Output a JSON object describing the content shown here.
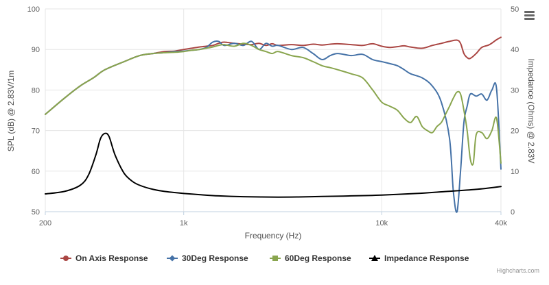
{
  "chart_data": {
    "type": "line",
    "title": "",
    "xlabel": "Frequency (Hz)",
    "ylabel_left": "SPL (dB) @ 2.83V/1m",
    "ylabel_right": "Impedance (Ohms) @ 2.83V",
    "x_scale": "log",
    "xlim": [
      200,
      40000
    ],
    "x_ticks": [
      200,
      1000,
      10000,
      40000
    ],
    "x_tick_labels": [
      "200",
      "1k",
      "10k",
      "40k"
    ],
    "ylim_left": [
      50,
      100
    ],
    "y_ticks_left": [
      50,
      60,
      70,
      80,
      90,
      100
    ],
    "y_tick_labels_left": [
      "50",
      "60",
      "70",
      "80",
      "90",
      "100"
    ],
    "ylim_right": [
      0,
      50
    ],
    "y_ticks_right": [
      0,
      10,
      20,
      30,
      40,
      50
    ],
    "y_tick_labels_right": [
      "0",
      "10",
      "20",
      "30",
      "40",
      "50"
    ],
    "grid": true,
    "legend_position": "bottom",
    "series": [
      {
        "name": "On Axis Response",
        "axis": "left",
        "color": "#aa4643",
        "marker": "circle",
        "x": [
          200,
          250,
          300,
          350,
          400,
          500,
          600,
          700,
          800,
          900,
          1000,
          1100,
          1200,
          1300,
          1400,
          1500,
          1600,
          1800,
          2000,
          2200,
          2400,
          2600,
          2800,
          3000,
          3500,
          4000,
          4500,
          5000,
          5500,
          6000,
          7000,
          8000,
          9000,
          10000,
          11000,
          12000,
          13000,
          14000,
          16000,
          18000,
          20000,
          22000,
          24000,
          25000,
          26000,
          27000,
          28000,
          30000,
          32000,
          35000,
          38000,
          40000
        ],
        "y": [
          74,
          78,
          81,
          83,
          85,
          87,
          88.5,
          89,
          89.5,
          89.6,
          90,
          90.3,
          90.6,
          90.8,
          91,
          91.5,
          91.8,
          91.5,
          91.3,
          91.2,
          91.5,
          91,
          91.4,
          91,
          91.2,
          91,
          91.3,
          91.1,
          91.3,
          91.4,
          91.2,
          91,
          91.4,
          90.8,
          90.5,
          90.7,
          90.9,
          90.6,
          90.3,
          91,
          91.5,
          92,
          92.3,
          91.5,
          89,
          88,
          87.8,
          89,
          90.5,
          91.2,
          92.4,
          93
        ]
      },
      {
        "name": "30Deg Response",
        "axis": "left",
        "color": "#4572a7",
        "marker": "diamond",
        "x": [
          200,
          250,
          300,
          350,
          400,
          500,
          600,
          700,
          800,
          900,
          1000,
          1100,
          1200,
          1300,
          1400,
          1500,
          1600,
          1800,
          2000,
          2200,
          2400,
          2600,
          2800,
          3000,
          3500,
          4000,
          4500,
          5000,
          5500,
          6000,
          7000,
          8000,
          9000,
          10000,
          11000,
          12000,
          13000,
          14000,
          16000,
          18000,
          20000,
          22000,
          23000,
          24000,
          25000,
          26000,
          27000,
          28000,
          30000,
          32000,
          34000,
          36000,
          38000,
          40000
        ],
        "y": [
          74,
          78,
          81,
          83,
          85,
          87,
          88.5,
          89,
          89.2,
          89.5,
          89.6,
          89.8,
          90,
          90.5,
          91.8,
          92,
          91,
          91.5,
          91,
          92,
          90,
          91.5,
          90.8,
          91,
          90,
          90.5,
          89,
          87.5,
          88.5,
          89,
          88.5,
          88.8,
          87.5,
          87,
          86.5,
          86,
          85,
          84,
          83,
          81,
          77,
          68,
          55,
          50,
          60,
          72,
          76,
          79,
          78.5,
          79,
          77.5,
          80,
          80.3,
          60.5
        ]
      },
      {
        "name": "60Deg Response",
        "axis": "left",
        "color": "#89a54e",
        "marker": "square",
        "x": [
          200,
          250,
          300,
          350,
          400,
          500,
          600,
          700,
          800,
          900,
          1000,
          1100,
          1200,
          1300,
          1400,
          1500,
          1600,
          1800,
          2000,
          2200,
          2400,
          2600,
          2800,
          3000,
          3500,
          4000,
          4500,
          5000,
          5500,
          6000,
          7000,
          8000,
          9000,
          10000,
          11000,
          12000,
          13000,
          14000,
          15000,
          16000,
          17000,
          18000,
          19000,
          20000,
          21000,
          22000,
          23000,
          24000,
          25000,
          26000,
          27000,
          28000,
          29000,
          30000,
          32000,
          34000,
          36000,
          38000,
          40000
        ],
        "y": [
          74,
          78,
          81,
          83,
          85,
          87,
          88.5,
          89,
          89.2,
          89.3,
          89.5,
          89.8,
          90,
          90.3,
          90.6,
          91,
          91.2,
          90.8,
          91.5,
          91,
          90,
          89.5,
          89,
          89.5,
          88.5,
          88,
          87,
          86,
          85.5,
          85,
          84,
          83,
          80,
          77,
          76,
          75,
          73,
          72,
          73.5,
          71,
          70,
          69.5,
          71,
          72,
          74,
          76,
          78,
          79.5,
          79,
          75,
          70,
          63,
          62,
          69,
          69.5,
          68,
          70,
          73,
          62
        ]
      },
      {
        "name": "Impedance Response",
        "axis": "right",
        "color": "#000000",
        "marker": "triangle",
        "x": [
          200,
          250,
          300,
          330,
          360,
          380,
          400,
          420,
          450,
          500,
          550,
          600,
          700,
          800,
          1000,
          1200,
          1500,
          2000,
          3000,
          4000,
          5000,
          7000,
          10000,
          15000,
          20000,
          30000,
          40000
        ],
        "y": [
          4.4,
          5,
          6.5,
          9,
          14,
          18,
          19.3,
          18.5,
          14,
          9.5,
          7.5,
          6.5,
          5.5,
          5,
          4.5,
          4.2,
          3.9,
          3.7,
          3.6,
          3.65,
          3.75,
          3.9,
          4.1,
          4.5,
          4.9,
          5.5,
          6.2
        ]
      }
    ]
  },
  "credits": "Highcharts.com",
  "colors": {
    "grid": "#e6e6e6",
    "axis_line": "#c0d0e0",
    "menu_icon": "#666666"
  },
  "icons": {
    "menu": "hamburger-menu-icon"
  }
}
